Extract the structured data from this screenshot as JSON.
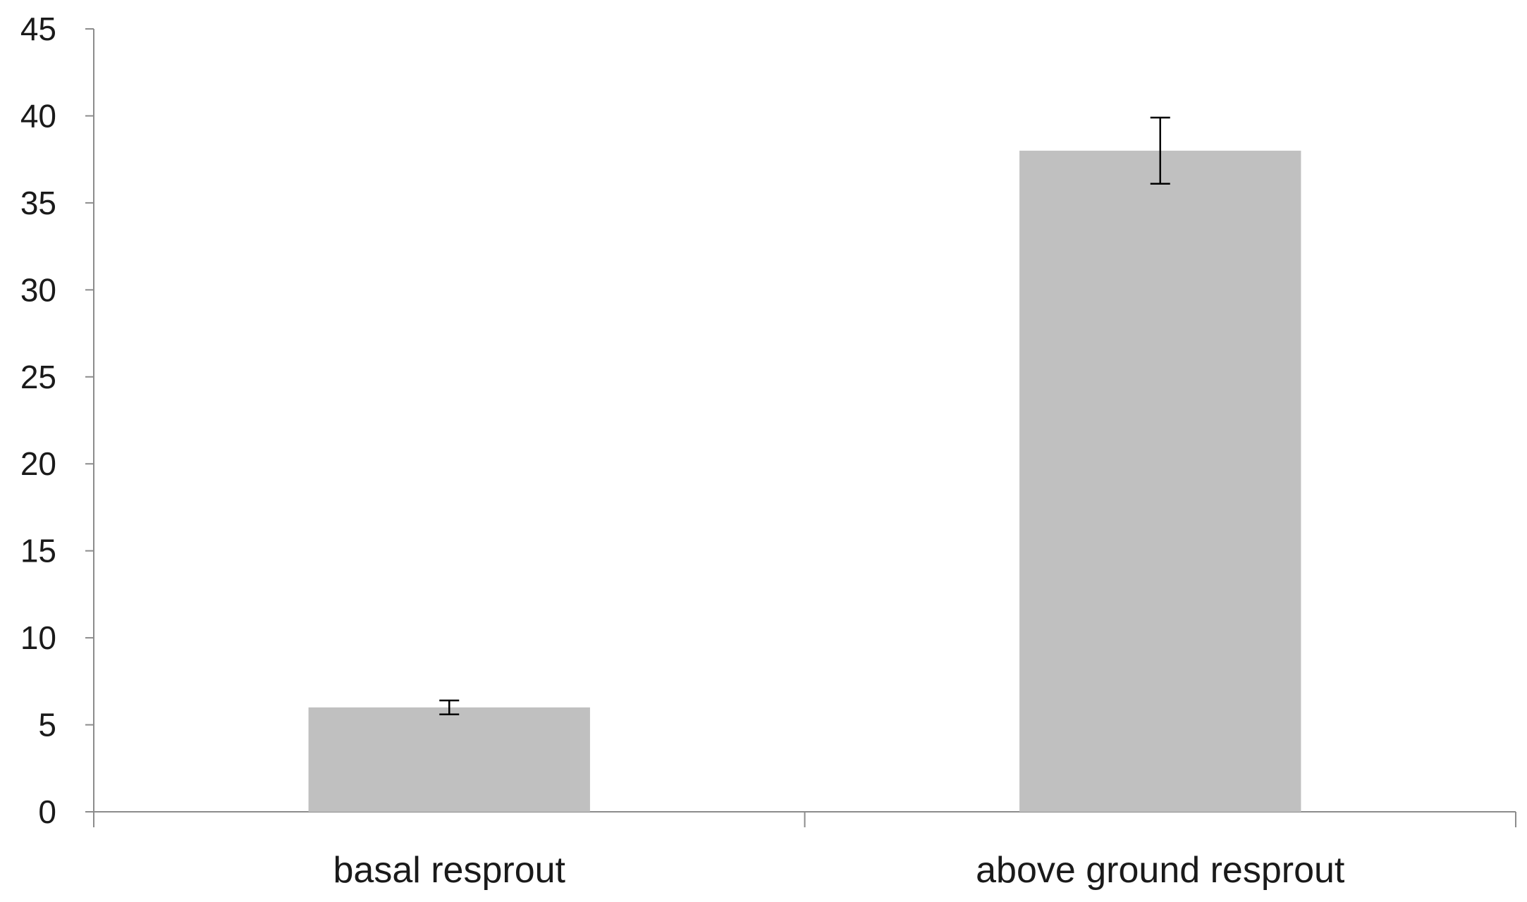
{
  "chart_data": {
    "type": "bar",
    "title": "",
    "xlabel": "",
    "ylabel": "",
    "categories": [
      "basal resprout",
      "above ground resprout"
    ],
    "series": [
      {
        "values": [
          6.0,
          38.0
        ],
        "error": [
          0.4,
          1.9
        ],
        "color": "#c0c0c0"
      }
    ],
    "ylim": [
      0,
      45
    ],
    "yticks": [
      "0",
      "5",
      "10",
      "15",
      "20",
      "25",
      "30",
      "35",
      "40",
      "45"
    ],
    "grid": false,
    "legend": "none",
    "axis_color": "#8c8c8c",
    "error_bar_color": "#000000"
  }
}
